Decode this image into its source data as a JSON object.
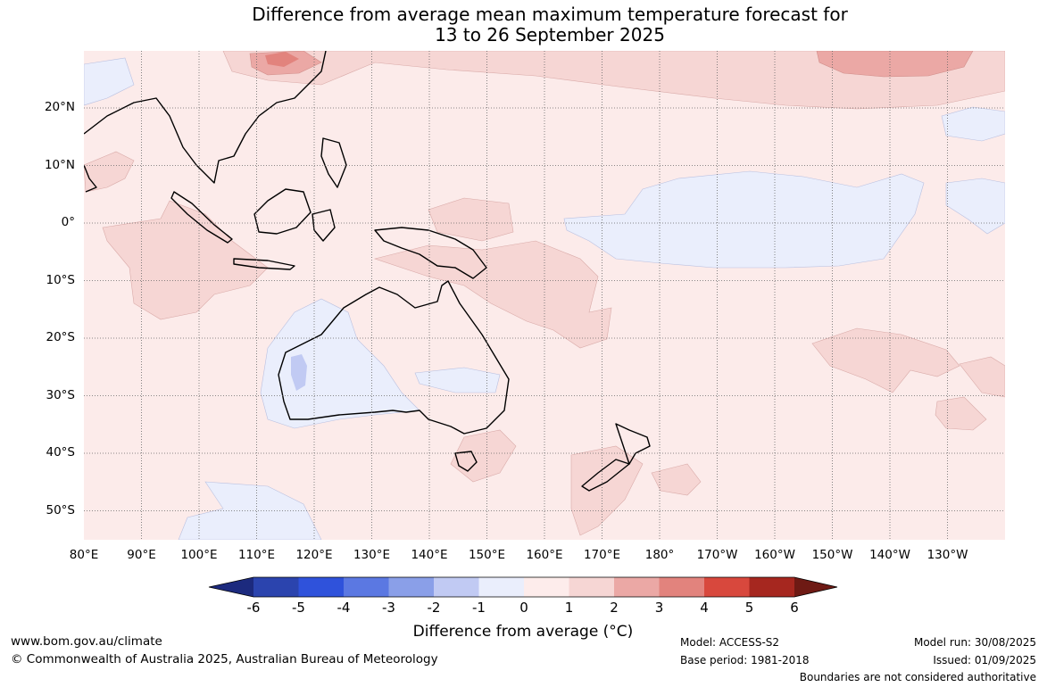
{
  "title_line1": "Difference from average mean maximum temperature forecast for",
  "title_line2": "13 to 26 September 2025",
  "lat_labels": [
    "20°N",
    "10°N",
    "0°",
    "10°S",
    "20°S",
    "30°S",
    "40°S",
    "50°S"
  ],
  "lon_labels": [
    "80°E",
    "90°E",
    "100°E",
    "110°E",
    "120°E",
    "130°E",
    "140°E",
    "150°E",
    "160°E",
    "170°E",
    "180°",
    "170°W",
    "160°W",
    "150°W",
    "140°W",
    "130°W"
  ],
  "colorbar": {
    "ticks": [
      "-6",
      "-5",
      "-4",
      "-3",
      "-2",
      "-1",
      "0",
      "1",
      "2",
      "3",
      "4",
      "5",
      "6"
    ],
    "colors": [
      "#1c2a7e",
      "#2b44ae",
      "#2f52db",
      "#5b78e2",
      "#8a9fe8",
      "#c1caf3",
      "#eaeefc",
      "#fdeceb",
      "#f6d6d4",
      "#eba8a5",
      "#e2837d",
      "#d8483d",
      "#a6271f",
      "#6e1a14"
    ],
    "label": "Difference from average (°C)"
  },
  "footer": {
    "url": "www.bom.gov.au/climate",
    "copyright": "© Commonwealth of Australia 2025, Australian Bureau of Meteorology",
    "model": "Model: ACCESS-S2",
    "base_period": "Base period: 1981-2018",
    "model_run": "Model run: 30/08/2025",
    "issued": "Issued: 01/09/2025",
    "disclaimer": "Boundaries are not considered authoritative"
  }
}
